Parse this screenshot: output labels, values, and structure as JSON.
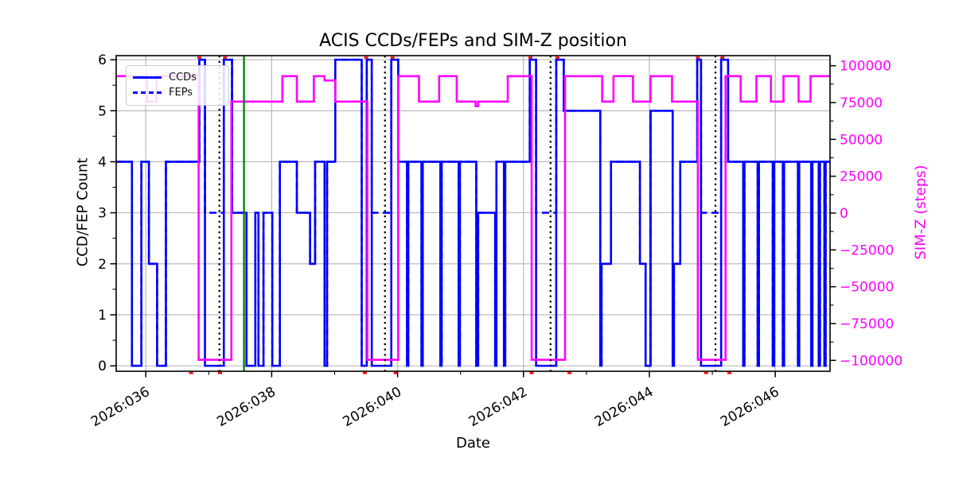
{
  "title": "ACIS CCDs/FEPs and SIM-Z position",
  "colors": {
    "ccd_line": "#0000ff",
    "simz_line": "#ff00ff",
    "grid": "#b3b3b3",
    "green_vline": "#008000",
    "dotted_vline": "#000000",
    "event_marker": "#ff0000",
    "right_axis_text": "#ff00ff"
  },
  "chart_data": {
    "type": "line",
    "title": "ACIS CCDs/FEPs and SIM-Z position",
    "xlabel": "Date",
    "ylabel_left": "CCD/FEP Count",
    "ylabel_right": "SIM-Z (steps)",
    "legend_position": "upper-left",
    "grid": true,
    "xlim": [
      35.53,
      46.87
    ],
    "ylim_left": [
      -0.107,
      6.08
    ],
    "ylim_right": [
      -107380,
      106840
    ],
    "x_major_ticks": [
      {
        "value": 36,
        "label": "2026:036"
      },
      {
        "value": 38,
        "label": "2026:038"
      },
      {
        "value": 40,
        "label": "2026:040"
      },
      {
        "value": 42,
        "label": "2026:042"
      },
      {
        "value": 44,
        "label": "2026:044"
      },
      {
        "value": 46,
        "label": "2026:046"
      }
    ],
    "x_minor_ticks": [
      37,
      39,
      41,
      43,
      45
    ],
    "y_left_ticks": [
      {
        "value": 0,
        "label": "0"
      },
      {
        "value": 1,
        "label": "1"
      },
      {
        "value": 2,
        "label": "2"
      },
      {
        "value": 3,
        "label": "3"
      },
      {
        "value": 4,
        "label": "4"
      },
      {
        "value": 5,
        "label": "5"
      },
      {
        "value": 6,
        "label": "6"
      }
    ],
    "y_left_minor_ticks": [
      0.5,
      1.5,
      2.5,
      3.5,
      4.5,
      5.5
    ],
    "y_right_ticks": [
      {
        "value": 100000,
        "label": "100000"
      },
      {
        "value": 75000,
        "label": "75000"
      },
      {
        "value": 50000,
        "label": "50000"
      },
      {
        "value": 25000,
        "label": "25000"
      },
      {
        "value": 0,
        "label": "0"
      },
      {
        "value": -25000,
        "label": "−25000"
      },
      {
        "value": -50000,
        "label": "−50000"
      },
      {
        "value": -75000,
        "label": "−75000"
      },
      {
        "value": -100000,
        "label": "−100000"
      }
    ],
    "y_right_minor_ticks": [
      87500,
      62500,
      37500,
      12500,
      -12500,
      -37500,
      -62500,
      -87500
    ],
    "series": [
      {
        "name": "CCDs",
        "axis": "left",
        "color": "#0000ff",
        "line": "solid",
        "width": 2.6,
        "steps": [
          [
            35.53,
            4
          ],
          [
            35.78,
            0
          ],
          [
            35.93,
            4
          ],
          [
            36.05,
            2
          ],
          [
            36.18,
            0
          ],
          [
            36.32,
            4
          ],
          [
            36.85,
            6
          ],
          [
            36.94,
            0
          ],
          [
            37.24,
            6
          ],
          [
            37.37,
            3
          ],
          [
            37.6,
            0
          ],
          [
            37.74,
            3
          ],
          [
            37.79,
            0
          ],
          [
            37.87,
            3
          ],
          [
            38.01,
            0
          ],
          [
            38.13,
            4
          ],
          [
            38.4,
            3
          ],
          [
            38.61,
            2
          ],
          [
            38.69,
            4
          ],
          [
            38.84,
            0
          ],
          [
            38.88,
            4
          ],
          [
            39.01,
            6
          ],
          [
            39.43,
            0
          ],
          [
            39.51,
            6
          ],
          [
            39.59,
            0
          ],
          [
            39.9,
            6
          ],
          [
            40.01,
            4
          ],
          [
            40.15,
            0
          ],
          [
            40.17,
            4
          ],
          [
            40.38,
            0
          ],
          [
            40.4,
            4
          ],
          [
            40.68,
            0
          ],
          [
            40.7,
            4
          ],
          [
            40.97,
            0
          ],
          [
            40.99,
            4
          ],
          [
            41.25,
            0
          ],
          [
            41.28,
            3
          ],
          [
            41.55,
            0
          ],
          [
            41.57,
            4
          ],
          [
            41.69,
            0
          ],
          [
            41.71,
            4
          ],
          [
            42.1,
            6
          ],
          [
            42.2,
            0
          ],
          [
            42.52,
            6
          ],
          [
            42.64,
            5
          ],
          [
            43.22,
            0
          ],
          [
            43.24,
            2
          ],
          [
            43.39,
            4
          ],
          [
            43.85,
            2
          ],
          [
            43.94,
            0
          ],
          [
            44.02,
            5
          ],
          [
            44.37,
            0
          ],
          [
            44.39,
            2
          ],
          [
            44.49,
            4
          ],
          [
            44.76,
            6
          ],
          [
            44.82,
            0
          ],
          [
            45.14,
            6
          ],
          [
            45.25,
            4
          ],
          [
            45.49,
            0
          ],
          [
            45.51,
            4
          ],
          [
            45.72,
            0
          ],
          [
            45.74,
            4
          ],
          [
            45.96,
            0
          ],
          [
            45.98,
            4
          ],
          [
            46.12,
            0
          ],
          [
            46.14,
            4
          ],
          [
            46.36,
            0
          ],
          [
            46.38,
            4
          ],
          [
            46.57,
            0
          ],
          [
            46.59,
            4
          ],
          [
            46.69,
            0
          ],
          [
            46.71,
            4
          ],
          [
            46.78,
            0
          ],
          [
            46.8,
            4
          ]
        ]
      },
      {
        "name": "FEPs",
        "axis": "left",
        "color": "#0000ff",
        "line": "dashed",
        "width": 2.6,
        "steps": [
          [
            35.53,
            4
          ],
          [
            35.78,
            0
          ],
          [
            35.93,
            4
          ],
          [
            36.05,
            2
          ],
          [
            36.18,
            0
          ],
          [
            36.32,
            4
          ],
          [
            36.85,
            6
          ],
          [
            36.94,
            3
          ],
          [
            37.24,
            6
          ],
          [
            37.37,
            3
          ],
          [
            37.6,
            0
          ],
          [
            37.74,
            3
          ],
          [
            37.79,
            0
          ],
          [
            37.87,
            3
          ],
          [
            38.01,
            0
          ],
          [
            38.13,
            4
          ],
          [
            38.4,
            3
          ],
          [
            38.61,
            2
          ],
          [
            38.69,
            4
          ],
          [
            38.84,
            0
          ],
          [
            38.88,
            4
          ],
          [
            39.01,
            6
          ],
          [
            39.43,
            0
          ],
          [
            39.51,
            6
          ],
          [
            39.59,
            3
          ],
          [
            39.9,
            6
          ],
          [
            40.01,
            4
          ],
          [
            40.15,
            0
          ],
          [
            40.17,
            4
          ],
          [
            40.38,
            0
          ],
          [
            40.4,
            4
          ],
          [
            40.68,
            0
          ],
          [
            40.7,
            4
          ],
          [
            40.97,
            0
          ],
          [
            40.99,
            4
          ],
          [
            41.25,
            0
          ],
          [
            41.28,
            3
          ],
          [
            41.55,
            0
          ],
          [
            41.57,
            4
          ],
          [
            41.69,
            0
          ],
          [
            41.71,
            4
          ],
          [
            42.1,
            6
          ],
          [
            42.2,
            3
          ],
          [
            42.52,
            6
          ],
          [
            42.64,
            5
          ],
          [
            43.22,
            0
          ],
          [
            43.24,
            2
          ],
          [
            43.39,
            4
          ],
          [
            43.85,
            2
          ],
          [
            43.94,
            0
          ],
          [
            44.02,
            5
          ],
          [
            44.37,
            0
          ],
          [
            44.39,
            2
          ],
          [
            44.49,
            4
          ],
          [
            44.76,
            6
          ],
          [
            44.82,
            3
          ],
          [
            45.14,
            6
          ],
          [
            45.25,
            4
          ],
          [
            45.49,
            0
          ],
          [
            45.51,
            4
          ],
          [
            45.72,
            0
          ],
          [
            45.74,
            4
          ],
          [
            45.96,
            0
          ],
          [
            45.98,
            4
          ],
          [
            46.12,
            0
          ],
          [
            46.14,
            4
          ],
          [
            46.36,
            0
          ],
          [
            46.38,
            4
          ],
          [
            46.57,
            0
          ],
          [
            46.59,
            4
          ],
          [
            46.69,
            0
          ],
          [
            46.71,
            4
          ],
          [
            46.78,
            0
          ],
          [
            46.8,
            4
          ]
        ]
      },
      {
        "name": "SIM-Z",
        "axis": "right",
        "color": "#ff00ff",
        "line": "solid",
        "width": 2.6,
        "steps": [
          [
            35.53,
            92904
          ],
          [
            36.02,
            75624
          ],
          [
            36.17,
            92904
          ],
          [
            36.84,
            -99616
          ],
          [
            37.36,
            75624
          ],
          [
            38.17,
            92904
          ],
          [
            38.4,
            75624
          ],
          [
            38.67,
            92904
          ],
          [
            38.84,
            90000
          ],
          [
            39.01,
            75624
          ],
          [
            39.52,
            -99616
          ],
          [
            40.01,
            92904
          ],
          [
            40.34,
            75624
          ],
          [
            40.66,
            92904
          ],
          [
            40.94,
            75624
          ],
          [
            41.24,
            72520
          ],
          [
            41.28,
            75624
          ],
          [
            41.75,
            92904
          ],
          [
            42.13,
            -99616
          ],
          [
            42.66,
            92904
          ],
          [
            43.25,
            75624
          ],
          [
            43.43,
            92904
          ],
          [
            43.74,
            75624
          ],
          [
            44.02,
            92904
          ],
          [
            44.36,
            75624
          ],
          [
            44.77,
            -99616
          ],
          [
            45.21,
            92904
          ],
          [
            45.45,
            75624
          ],
          [
            45.7,
            92904
          ],
          [
            45.93,
            75624
          ],
          [
            46.13,
            92904
          ],
          [
            46.37,
            75624
          ],
          [
            46.56,
            92904
          ]
        ]
      }
    ],
    "vlines": [
      {
        "x": 37.56,
        "color": "#008000",
        "style": "solid",
        "name": "green-event-line"
      },
      {
        "x": 37.17,
        "color": "#000000",
        "style": "dotted",
        "name": "perigee-dotted-line"
      },
      {
        "x": 39.8,
        "color": "#000000",
        "style": "dotted",
        "name": "perigee-dotted-line"
      },
      {
        "x": 42.43,
        "color": "#000000",
        "style": "dotted",
        "name": "perigee-dotted-line"
      },
      {
        "x": 45.05,
        "color": "#000000",
        "style": "dotted",
        "name": "perigee-dotted-line"
      }
    ],
    "event_markers": {
      "color": "#ff0000",
      "top_days": [
        36.85,
        37.26,
        39.5,
        39.92,
        42.11,
        42.54,
        44.77,
        45.16
      ],
      "bottom_days": [
        36.72,
        37.18,
        39.48,
        39.97,
        42.13,
        42.73,
        44.9,
        45.27
      ]
    }
  }
}
